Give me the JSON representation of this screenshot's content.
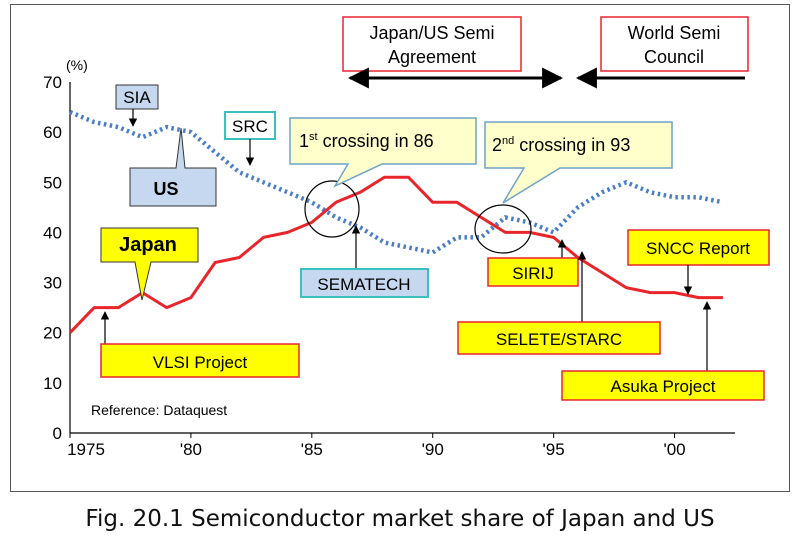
{
  "chart_data": {
    "type": "line",
    "yunit": "(%)",
    "ylim": [
      0,
      70
    ],
    "yticks": [
      0,
      10,
      20,
      30,
      40,
      50,
      60,
      70
    ],
    "xlim": [
      1975,
      2002.5
    ],
    "xticks": [
      {
        "value": 1975,
        "label": "1975"
      },
      {
        "value": 1980,
        "label": "'80"
      },
      {
        "value": 1985,
        "label": "'85"
      },
      {
        "value": 1990,
        "label": "'90"
      },
      {
        "value": 1995,
        "label": "'95"
      },
      {
        "value": 2000,
        "label": "'00"
      }
    ],
    "grid": false,
    "series": [
      {
        "name": "US",
        "style": "dotted",
        "color": "#4a7ec8",
        "points": [
          [
            1975,
            64
          ],
          [
            1976,
            62
          ],
          [
            1977,
            61
          ],
          [
            1978,
            59
          ],
          [
            1979,
            61
          ],
          [
            1980,
            60
          ],
          [
            1981,
            56
          ],
          [
            1982,
            52
          ],
          [
            1983,
            50
          ],
          [
            1984,
            48
          ],
          [
            1985,
            46
          ],
          [
            1986,
            43
          ],
          [
            1987,
            41
          ],
          [
            1988,
            38
          ],
          [
            1989,
            37
          ],
          [
            1990,
            36
          ],
          [
            1991,
            39
          ],
          [
            1992,
            39
          ],
          [
            1993,
            43
          ],
          [
            1994,
            42
          ],
          [
            1995,
            40
          ],
          [
            1996,
            45
          ],
          [
            1997,
            48
          ],
          [
            1998,
            50
          ],
          [
            1999,
            48
          ],
          [
            2000,
            47
          ],
          [
            2001,
            47
          ],
          [
            2002,
            46
          ]
        ]
      },
      {
        "name": "Japan",
        "style": "solid",
        "color": "#e8252b",
        "points": [
          [
            1975,
            20
          ],
          [
            1976,
            25
          ],
          [
            1977,
            25
          ],
          [
            1978,
            28
          ],
          [
            1979,
            25
          ],
          [
            1980,
            27
          ],
          [
            1981,
            34
          ],
          [
            1982,
            35
          ],
          [
            1983,
            39
          ],
          [
            1984,
            40
          ],
          [
            1985,
            42
          ],
          [
            1986,
            46
          ],
          [
            1987,
            48
          ],
          [
            1988,
            51
          ],
          [
            1989,
            51
          ],
          [
            1990,
            46
          ],
          [
            1991,
            46
          ],
          [
            1992,
            43
          ],
          [
            1993,
            40
          ],
          [
            1994,
            40
          ],
          [
            1995,
            39
          ],
          [
            1996,
            35
          ],
          [
            1997,
            32
          ],
          [
            1998,
            29
          ],
          [
            1999,
            28
          ],
          [
            2000,
            28
          ],
          [
            2001,
            27
          ],
          [
            2002,
            27
          ]
        ]
      }
    ]
  },
  "labels": {
    "sia": "SIA",
    "src": "SRC",
    "us": "US",
    "japan": "Japan",
    "sematech": "SEMATECH",
    "crossing1_prefix": "1",
    "crossing1_sup": "st",
    "crossing1_text": " crossing in 86",
    "crossing2_prefix": "2",
    "crossing2_sup": "nd",
    "crossing2_text": " crossing in 93",
    "agreement_line1": "Japan/US Semi",
    "agreement_line2": "Agreement",
    "council_line1": "World Semi",
    "council_line2": "Council",
    "sirij": "SIRIJ",
    "sncc": "SNCC  Report",
    "selete": "SELETE/STARC",
    "asuka": "Asuka Project",
    "vlsi": "VLSI Project",
    "reference": "Reference: Dataquest"
  },
  "caption": "Fig. 20.1 Semiconductor market share of Japan and US"
}
